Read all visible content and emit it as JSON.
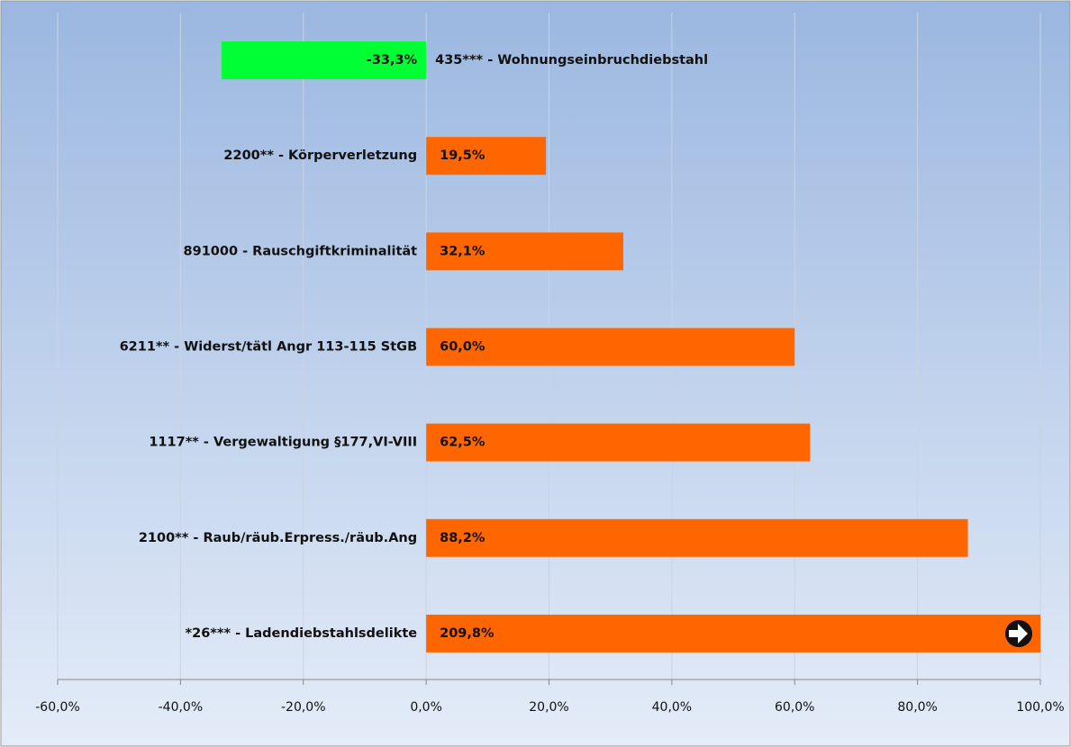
{
  "chart_data": {
    "type": "barh",
    "categories": [
      "435*** - Wohnungseinbruchdiebstahl",
      "2200**  - Körperverletzung",
      "891000 - Rauschgiftkriminalität",
      "6211** - Widerst/tätl Angr 113-115 StGB",
      "1117** - Vergewaltigung §177,VI-VIII",
      "2100** - Raub/räub.Erpress./räub.Ang",
      "*26*** - Ladendiebstahlsdelikte"
    ],
    "values": [
      -33.3,
      19.5,
      32.1,
      60.0,
      62.5,
      88.2,
      209.8
    ],
    "value_labels": [
      "-33,3%",
      "19,5%",
      "32,1%",
      "60,0%",
      "62,5%",
      "88,2%",
      "209,8%"
    ],
    "colors": [
      "#00ff33",
      "#ff6600",
      "#ff6600",
      "#ff6600",
      "#ff6600",
      "#ff6600",
      "#ff6600"
    ],
    "xlim": [
      -60,
      100
    ],
    "xticks": [
      {
        "value": -60,
        "label": "-60,0%"
      },
      {
        "value": -40,
        "label": "-40,0%"
      },
      {
        "value": -20,
        "label": "-20,0%"
      },
      {
        "value": 0,
        "label": "0,0%"
      },
      {
        "value": 20,
        "label": "20,0%"
      },
      {
        "value": 40,
        "label": "40,0%"
      },
      {
        "value": 60,
        "label": "60,0%"
      },
      {
        "value": 80,
        "label": "80,0%"
      },
      {
        "value": 100,
        "label": "100,0%"
      }
    ],
    "grid": true
  }
}
